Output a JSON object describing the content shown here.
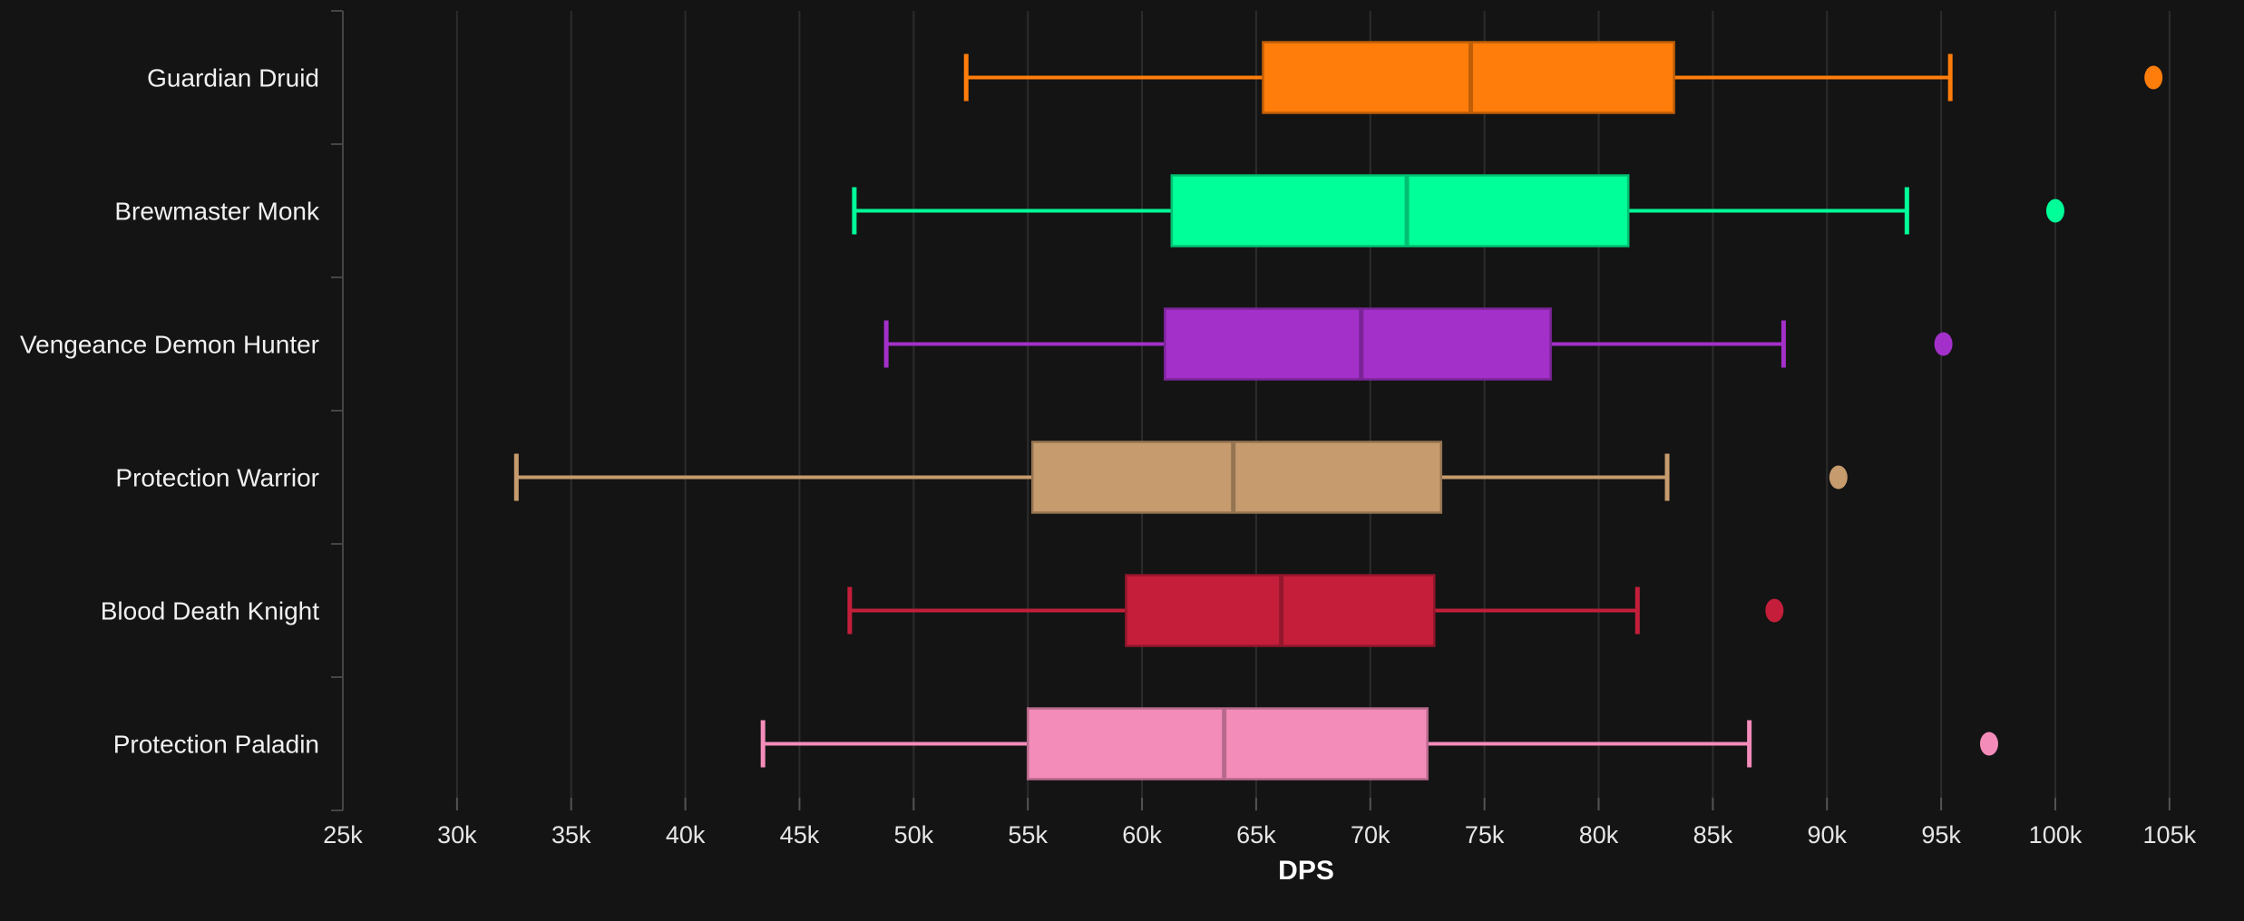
{
  "chart_data": {
    "type": "boxplot",
    "title": "",
    "xlabel": "DPS",
    "orientation": "horizontal",
    "grid": true,
    "legend": false,
    "x_axis": {
      "min": 25000,
      "max": 106000,
      "tick_interval": 5000,
      "tick_values": [
        25000,
        30000,
        35000,
        40000,
        45000,
        50000,
        55000,
        60000,
        65000,
        70000,
        75000,
        80000,
        85000,
        90000,
        95000,
        100000,
        105000
      ],
      "tick_labels": [
        "25k",
        "30k",
        "35k",
        "40k",
        "45k",
        "50k",
        "55k",
        "60k",
        "65k",
        "70k",
        "75k",
        "80k",
        "85k",
        "90k",
        "95k",
        "100k",
        "105k"
      ]
    },
    "categories": [
      "Guardian Druid",
      "Brewmaster Monk",
      "Vengeance Demon Hunter",
      "Protection Warrior",
      "Blood Death Knight",
      "Protection Paladin"
    ],
    "series": [
      {
        "name": "Guardian Druid",
        "color": "#FF7D0A",
        "median_color": "#BF5E08",
        "low": 52300,
        "q1": 65300,
        "median": 74400,
        "q3": 83300,
        "high": 95400,
        "outliers": [
          104300
        ]
      },
      {
        "name": "Brewmaster Monk",
        "color": "#00FF98",
        "median_color": "#00BF72",
        "low": 47400,
        "q1": 61300,
        "median": 71600,
        "q3": 81300,
        "high": 93500,
        "outliers": [
          100000
        ]
      },
      {
        "name": "Vengeance Demon Hunter",
        "color": "#A330C9",
        "median_color": "#7A2497",
        "low": 48800,
        "q1": 61000,
        "median": 69600,
        "q3": 77900,
        "high": 88100,
        "outliers": [
          95100
        ]
      },
      {
        "name": "Protection Warrior",
        "color": "#C69B6D",
        "median_color": "#957452",
        "low": 32600,
        "q1": 55200,
        "median": 64000,
        "q3": 73100,
        "high": 83000,
        "outliers": [
          90500
        ]
      },
      {
        "name": "Blood Death Knight",
        "color": "#C41E3A",
        "median_color": "#93172C",
        "low": 47200,
        "q1": 59300,
        "median": 66100,
        "q3": 72800,
        "high": 81700,
        "outliers": [
          87700
        ]
      },
      {
        "name": "Protection Paladin",
        "color": "#F48CBA",
        "median_color": "#B7698C",
        "low": 43400,
        "q1": 55000,
        "median": 63600,
        "q3": 72500,
        "high": 86600,
        "outliers": [
          97100
        ]
      }
    ]
  },
  "colors": {
    "background": "#141414",
    "grid_line": "#2c2c2c",
    "axis_line": "#454545",
    "tick_mark": "#545454",
    "tick_text": "#e6e6e6",
    "category_text": "#f0f0f0"
  }
}
